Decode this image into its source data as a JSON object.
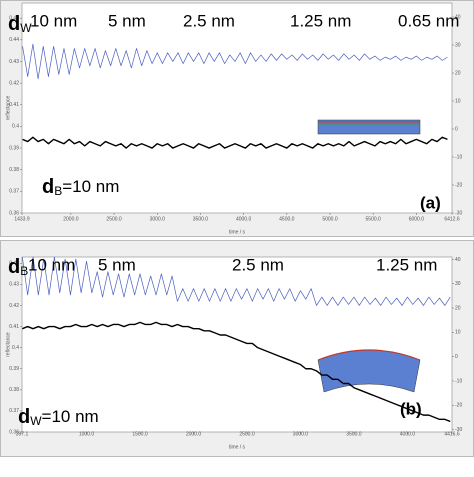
{
  "chart_data": [
    {
      "type": "line",
      "xlabel": "time / s",
      "ylabel": "reflectance",
      "xlim": [
        1433.9,
        6412.6
      ],
      "xticks": [
        1433.9,
        {
          "value": 2000,
          "label": "2000.0"
        },
        {
          "value": 2500,
          "label": "2500.0"
        },
        {
          "value": 3000,
          "label": "3000.0"
        },
        {
          "value": 3500,
          "label": "3500.0"
        },
        {
          "value": 4000,
          "label": "4000.0"
        },
        {
          "value": 4500,
          "label": "4500.0"
        },
        {
          "value": 5000,
          "label": "5000.0"
        },
        {
          "value": 5500,
          "label": "5500.0"
        },
        {
          "value": 6000,
          "label": "6000.0"
        },
        6412.6
      ],
      "ylim": [
        0.36,
        0.457
      ],
      "yticks": [
        0.36,
        0.37,
        0.38,
        0.39,
        0.4,
        0.41,
        0.42,
        0.43,
        0.44,
        0.45
      ],
      "y2lim": [
        -30,
        45
      ],
      "y2ticks": [
        -30,
        -20,
        -10,
        0,
        10,
        20,
        30,
        40
      ],
      "x": [
        1440,
        1500,
        1560,
        1620,
        1680,
        1740,
        1800,
        1860,
        1920,
        1980,
        2040,
        2100,
        2160,
        2220,
        2280,
        2340,
        2400,
        2460,
        2520,
        2580,
        2640,
        2700,
        2760,
        2820,
        2880,
        2940,
        3000,
        3060,
        3120,
        3180,
        3240,
        3300,
        3360,
        3420,
        3480,
        3540,
        3600,
        3660,
        3720,
        3780,
        3840,
        3900,
        3960,
        4020,
        4080,
        4140,
        4200,
        4260,
        4320,
        4380,
        4440,
        4500,
        4560,
        4620,
        4680,
        4740,
        4800,
        4860,
        4920,
        4980,
        5040,
        5100,
        5160,
        5220,
        5280,
        5340,
        5400,
        5460,
        5520,
        5580,
        5640,
        5700,
        5760,
        5820,
        5880,
        5940,
        6000,
        6060,
        6120,
        6180,
        6240,
        6300,
        6360
      ],
      "series": [
        {
          "color": "#4a5fc1",
          "values": [
            0.437,
            0.423,
            0.438,
            0.422,
            0.437,
            0.423,
            0.437,
            0.424,
            0.436,
            0.424,
            0.436,
            0.427,
            0.436,
            0.428,
            0.436,
            0.427,
            0.435,
            0.428,
            0.436,
            0.428,
            0.435,
            0.427,
            0.436,
            0.428,
            0.435,
            0.429,
            0.434,
            0.429,
            0.434,
            0.43,
            0.434,
            0.429,
            0.434,
            0.43,
            0.434,
            0.429,
            0.434,
            0.43,
            0.434,
            0.429,
            0.433,
            0.43,
            0.434,
            0.429,
            0.434,
            0.43,
            0.433,
            0.43,
            0.4335,
            0.4305,
            0.4335,
            0.431,
            0.433,
            0.4305,
            0.4335,
            0.431,
            0.433,
            0.4305,
            0.4335,
            0.431,
            0.433,
            0.4305,
            0.4335,
            0.431,
            0.433,
            0.4305,
            0.4335,
            0.431,
            0.4325,
            0.4305,
            0.432,
            0.431,
            0.4325,
            0.4305,
            0.432,
            0.431,
            0.4325,
            0.4305,
            0.432,
            0.431,
            0.4325,
            0.4305,
            0.432
          ]
        },
        {
          "color": "#000000",
          "values": [
            0.394,
            0.393,
            0.395,
            0.393,
            0.394,
            0.392,
            0.394,
            0.393,
            0.392,
            0.394,
            0.392,
            0.393,
            0.391,
            0.393,
            0.392,
            0.391,
            0.393,
            0.392,
            0.391,
            0.392,
            0.39,
            0.392,
            0.391,
            0.392,
            0.391,
            0.39,
            0.392,
            0.391,
            0.392,
            0.39,
            0.391,
            0.392,
            0.391,
            0.39,
            0.392,
            0.391,
            0.39,
            0.391,
            0.392,
            0.39,
            0.391,
            0.392,
            0.391,
            0.39,
            0.392,
            0.391,
            0.392,
            0.39,
            0.391,
            0.392,
            0.391,
            0.39,
            0.392,
            0.391,
            0.392,
            0.391,
            0.39,
            0.392,
            0.391,
            0.392,
            0.391,
            0.392,
            0.391,
            0.393,
            0.391,
            0.392,
            0.393,
            0.392,
            0.391,
            0.393,
            0.392,
            0.393,
            0.392,
            0.394,
            0.392,
            0.393,
            0.394,
            0.393,
            0.392,
            0.394,
            0.393,
            0.395,
            0.394
          ]
        }
      ],
      "thickness_label": {
        "symbol": "d",
        "subscript": "W"
      },
      "annotations": [
        "10 nm",
        "5 nm",
        "2.5 nm",
        "1.25 nm",
        "0.65 nm"
      ],
      "inset_label": {
        "symbol": "d",
        "subscript": "B",
        "text": "=10 nm"
      },
      "panel_label": "(a)"
    },
    {
      "type": "line",
      "xlabel": "time / s",
      "ylabel": "reflectance",
      "xlim": [
        397.1,
        4416.6
      ],
      "xticks": [
        397.1,
        {
          "value": 1000,
          "label": "1000.0"
        },
        {
          "value": 1500,
          "label": "1500.0"
        },
        {
          "value": 2000,
          "label": "2000.0"
        },
        {
          "value": 2500,
          "label": "2500.0"
        },
        {
          "value": 3000,
          "label": "3000.0"
        },
        {
          "value": 3500,
          "label": "3500.0"
        },
        {
          "value": 4000,
          "label": "4000.0"
        },
        4416.6
      ],
      "ylim": [
        0.36,
        0.443
      ],
      "yticks": [
        0.36,
        0.37,
        0.38,
        0.39,
        0.4,
        0.41,
        0.42,
        0.43,
        0.44
      ],
      "y2lim": [
        -31,
        41
      ],
      "y2ticks": [
        -30,
        -20,
        -10,
        0,
        10,
        20,
        30,
        40
      ],
      "x": [
        400,
        450,
        500,
        550,
        600,
        650,
        700,
        750,
        800,
        850,
        900,
        950,
        1000,
        1050,
        1100,
        1150,
        1200,
        1250,
        1300,
        1350,
        1400,
        1450,
        1500,
        1550,
        1600,
        1650,
        1700,
        1750,
        1800,
        1850,
        1900,
        1950,
        2000,
        2050,
        2100,
        2150,
        2200,
        2250,
        2300,
        2350,
        2400,
        2450,
        2500,
        2550,
        2600,
        2650,
        2700,
        2750,
        2800,
        2850,
        2900,
        2950,
        3000,
        3050,
        3100,
        3150,
        3200,
        3250,
        3300,
        3350,
        3400,
        3450,
        3500,
        3550,
        3600,
        3650,
        3700,
        3750,
        3800,
        3850,
        3900,
        3950,
        4000,
        4050,
        4100,
        4150,
        4200,
        4250,
        4300,
        4350,
        4400
      ],
      "series": [
        {
          "color": "#4a5fc1",
          "values": [
            0.443,
            0.425,
            0.443,
            0.425,
            0.442,
            0.425,
            0.443,
            0.426,
            0.442,
            0.425,
            0.442,
            0.426,
            0.441,
            0.426,
            0.436,
            0.424,
            0.436,
            0.425,
            0.435,
            0.424,
            0.435,
            0.425,
            0.435,
            0.425,
            0.434,
            0.425,
            0.435,
            0.425,
            0.434,
            0.422,
            0.428,
            0.422,
            0.428,
            0.422,
            0.428,
            0.422,
            0.428,
            0.422,
            0.428,
            0.422,
            0.428,
            0.423,
            0.428,
            0.422,
            0.428,
            0.423,
            0.428,
            0.422,
            0.428,
            0.423,
            0.428,
            0.422,
            0.427,
            0.423,
            0.428,
            0.42,
            0.424,
            0.42,
            0.424,
            0.42,
            0.424,
            0.4205,
            0.424,
            0.42,
            0.424,
            0.4205,
            0.4235,
            0.42,
            0.424,
            0.4205,
            0.4235,
            0.42,
            0.424,
            0.4205,
            0.4235,
            0.42,
            0.424,
            0.4205,
            0.4235,
            0.42,
            0.424
          ]
        },
        {
          "color": "#000000",
          "values": [
            0.409,
            0.41,
            0.409,
            0.41,
            0.409,
            0.41,
            0.41,
            0.409,
            0.41,
            0.41,
            0.411,
            0.41,
            0.41,
            0.411,
            0.41,
            0.411,
            0.41,
            0.411,
            0.411,
            0.41,
            0.411,
            0.411,
            0.412,
            0.411,
            0.411,
            0.412,
            0.411,
            0.411,
            0.41,
            0.411,
            0.41,
            0.41,
            0.409,
            0.409,
            0.408,
            0.408,
            0.407,
            0.406,
            0.406,
            0.405,
            0.404,
            0.403,
            0.402,
            0.402,
            0.4,
            0.399,
            0.398,
            0.397,
            0.396,
            0.395,
            0.394,
            0.393,
            0.392,
            0.39,
            0.39,
            0.389,
            0.387,
            0.387,
            0.385,
            0.385,
            0.383,
            0.383,
            0.381,
            0.38,
            0.379,
            0.378,
            0.377,
            0.376,
            0.375,
            0.374,
            0.373,
            0.372,
            0.371,
            0.37,
            0.369,
            0.368,
            0.368,
            0.367,
            0.366,
            0.366,
            0.365
          ]
        }
      ],
      "thickness_label": {
        "symbol": "d",
        "subscript": "B"
      },
      "annotations": [
        "10 nm",
        "5 nm",
        "2.5 nm",
        "1.25 nm"
      ],
      "inset_label": {
        "symbol": "d",
        "subscript": "W",
        "text": "=10 nm"
      },
      "panel_label": "(b)"
    }
  ]
}
